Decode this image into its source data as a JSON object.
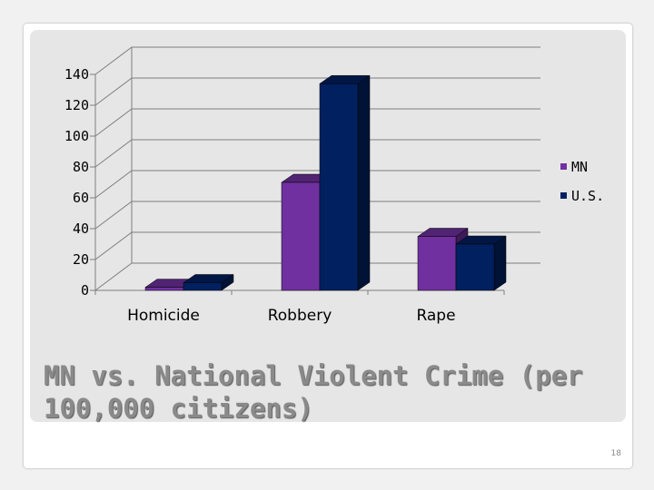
{
  "slide": {
    "title": "MN vs. National Violent Crime (per 100,000 citizens)",
    "page_number": "18"
  },
  "chart_data": {
    "type": "bar",
    "style": "3d-clustered",
    "categories": [
      "Homicide",
      "Robbery",
      "Rape"
    ],
    "series": [
      {
        "name": "MN",
        "values": [
          2,
          70,
          35
        ],
        "color": "#7030a0"
      },
      {
        "name": "U.S.",
        "values": [
          5,
          134,
          30
        ],
        "color": "#002060"
      }
    ],
    "ylim": [
      0,
      140
    ],
    "yticks": [
      "0",
      "20",
      "40",
      "60",
      "80",
      "100",
      "120",
      "140"
    ],
    "grid": true,
    "legend_position": "right"
  }
}
